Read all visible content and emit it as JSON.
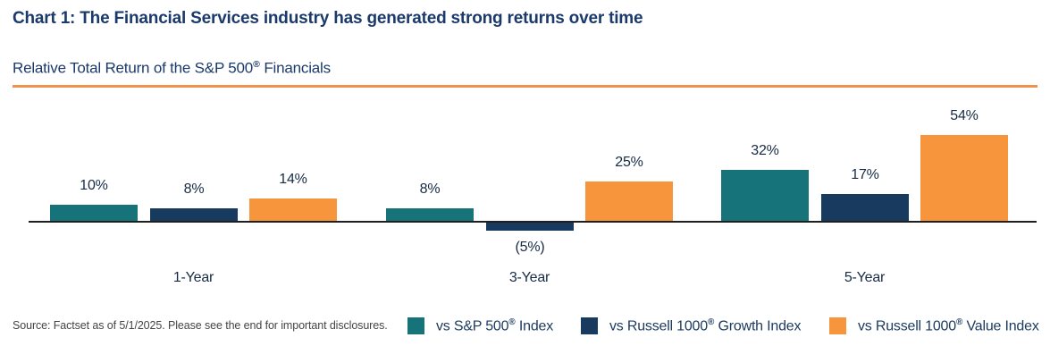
{
  "header": {
    "title": "Chart 1: The Financial Services industry has generated strong returns over time",
    "subtitle": {
      "text": "Relative Total Return of the S&P 500",
      "reg": "®",
      "suffix": " Financials"
    }
  },
  "chart_data": {
    "type": "bar",
    "title": "Relative Total Return of the S&P 500® Financials",
    "categories": [
      "1-Year",
      "3-Year",
      "5-Year"
    ],
    "series": [
      {
        "name": "vs S&P 500® Index",
        "name_pre": "vs S&P 500",
        "name_post": " Index",
        "color": "#157379",
        "values": [
          10,
          8,
          32
        ],
        "labels": [
          "10%",
          "8%",
          "32%"
        ]
      },
      {
        "name": "vs Russell 1000® Growth Index",
        "name_pre": "vs Russell 1000",
        "name_post": " Growth Index",
        "color": "#183A5E",
        "values": [
          8,
          -5,
          17
        ],
        "labels": [
          "8%",
          "(5%)",
          "17%"
        ]
      },
      {
        "name": "vs Russell 1000® Value Index",
        "name_pre": "vs Russell 1000",
        "name_post": " Value Index",
        "color": "#F6953C",
        "values": [
          14,
          25,
          54
        ],
        "labels": [
          "14%",
          "25%",
          "54%"
        ]
      }
    ],
    "reg_mark": "®",
    "unit": "%",
    "xlabel": "",
    "ylabel": "",
    "ylim": [
      -10,
      60
    ],
    "gridlines": false,
    "legend_position": "bottom"
  },
  "footer": {
    "source": "Source: Factset as of 5/1/2025. Please see the end for important disclosures."
  },
  "colors": {
    "title_navy": "#1B3A6B",
    "rule_orange": "#F0924E",
    "teal": "#157379",
    "navy": "#183A5E",
    "orange": "#F6953C",
    "axis": "#1F1F1F",
    "chart_text": "#172B45",
    "source_text": "#454545"
  }
}
